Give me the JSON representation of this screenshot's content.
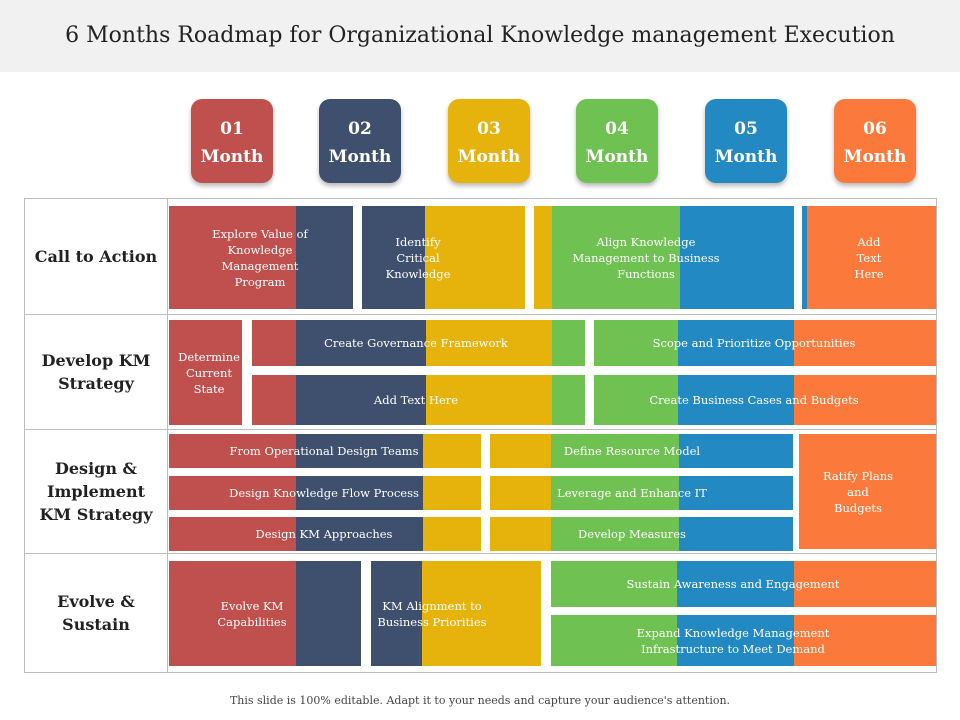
{
  "title": "6 Months Roadmap for Organizational Knowledge management Execution",
  "footer": "This slide is 100% editable. Adapt it to your needs and capture your audience's attention.",
  "colors": {
    "red": "#c0504d",
    "navy": "#3f506e",
    "yellow": "#e6b20c",
    "green": "#6fc152",
    "blue": "#2389c2",
    "orange": "#fb7a3b"
  },
  "months": [
    {
      "num": "01",
      "label": "Month",
      "color": "#c0504d"
    },
    {
      "num": "02",
      "label": "Month",
      "color": "#3f506e"
    },
    {
      "num": "03",
      "label": "Month",
      "color": "#e6b20c"
    },
    {
      "num": "04",
      "label": "Month",
      "color": "#6fc152"
    },
    {
      "num": "05",
      "label": "Month",
      "color": "#2389c2"
    },
    {
      "num": "06",
      "label": "Month",
      "color": "#fb7a3b"
    }
  ],
  "rows": [
    {
      "label": "Call to Action"
    },
    {
      "label": "Develop KM\nStrategy"
    },
    {
      "label": "Design &\nImplement\nKM Strategy"
    },
    {
      "label": "Evolve &\nSustain"
    }
  ],
  "tasks": {
    "explore_value": "Explore Value of\nKnowledge\nManagement\nProgram",
    "identify_critical": "Identify\nCritical\nKnowledge",
    "align_km": "Align Knowledge\nManagement  to Business\nFunctions",
    "add_text_1": "Add\nText\nHere",
    "determine_state": "Determine\nCurrent\nState",
    "governance": "Create  Governance  Framework",
    "scope_prioritize": "Scope  and  Prioritize  Opportunities",
    "add_text_2": "Add  Text  Here",
    "business_cases": "Create  Business  Cases  and  Budgets",
    "operational_design": "From  Operational  Design  Teams",
    "resource_model": "Define  Resource  Model",
    "ratify_plans": "Ratify  Plans\nand\nBudgets",
    "flow_process": "Design  Knowledge  Flow  Process",
    "leverage_it": "Leverage  and  Enhance  IT",
    "km_approaches": "Design  KM  Approaches",
    "develop_measures": "Develop  Measures",
    "evolve_capabilities": "Evolve  KM\nCapabilities",
    "km_alignment": "KM  Alignment  to\nBusiness  Priorities",
    "sustain_awareness": "Sustain  Awareness  and  Engagement",
    "expand_infrastructure": "Expand  Knowledge  Management\nInfrastructure  to  Meet  Demand"
  }
}
